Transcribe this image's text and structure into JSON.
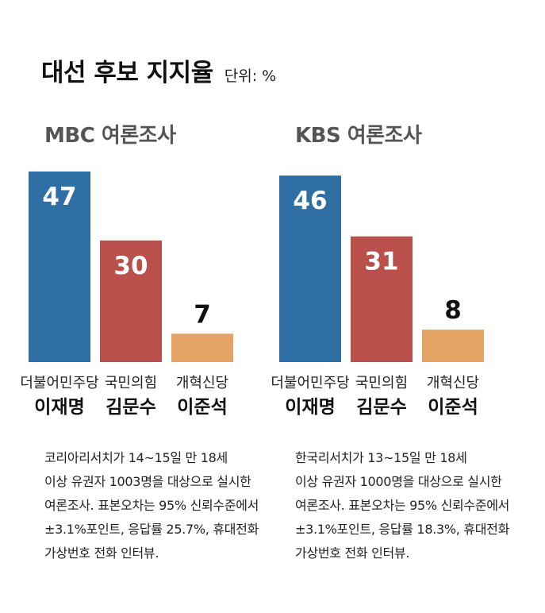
{
  "title": "대선 후보 지지율",
  "unit": "단위: %",
  "colors": {
    "lee_jm": "#2f6fa3",
    "kim_ms": "#b9504b",
    "lee_js": "#e4a463"
  },
  "chart_data": [
    {
      "type": "bar",
      "title": "MBC 여론조사",
      "categories": [
        "이재명",
        "김문수",
        "이준석"
      ],
      "parties": [
        "더불어민주당",
        "국민의힘",
        "개혁신당"
      ],
      "values": [
        47,
        30,
        7
      ],
      "ylim": [
        0,
        47
      ],
      "grid": false,
      "legend": "none",
      "note": [
        "코리아리서치가 14~15일 만 18세",
        "이상 유권자 1003명을 대상으로 실시한",
        "여론조사. 표본오차는 95% 신뢰수준에서",
        "±3.1%포인트, 응답률 25.7%, 휴대전화",
        "가상번호 전화 인터뷰."
      ]
    },
    {
      "type": "bar",
      "title": "KBS 여론조사",
      "categories": [
        "이재명",
        "김문수",
        "이준석"
      ],
      "parties": [
        "더불어민주당",
        "국민의힘",
        "개혁신당"
      ],
      "values": [
        46,
        31,
        8
      ],
      "ylim": [
        0,
        47
      ],
      "grid": false,
      "legend": "none",
      "note": [
        "한국리서치가 13~15일 만 18세",
        "이상 유권자 1000명을 대상으로 실시한",
        "여론조사. 표본오차는 95% 신뢰수준에서",
        "±3.1%포인트, 응답률 18.3%, 휴대전화",
        "가상번호 전화 인터뷰."
      ]
    }
  ]
}
